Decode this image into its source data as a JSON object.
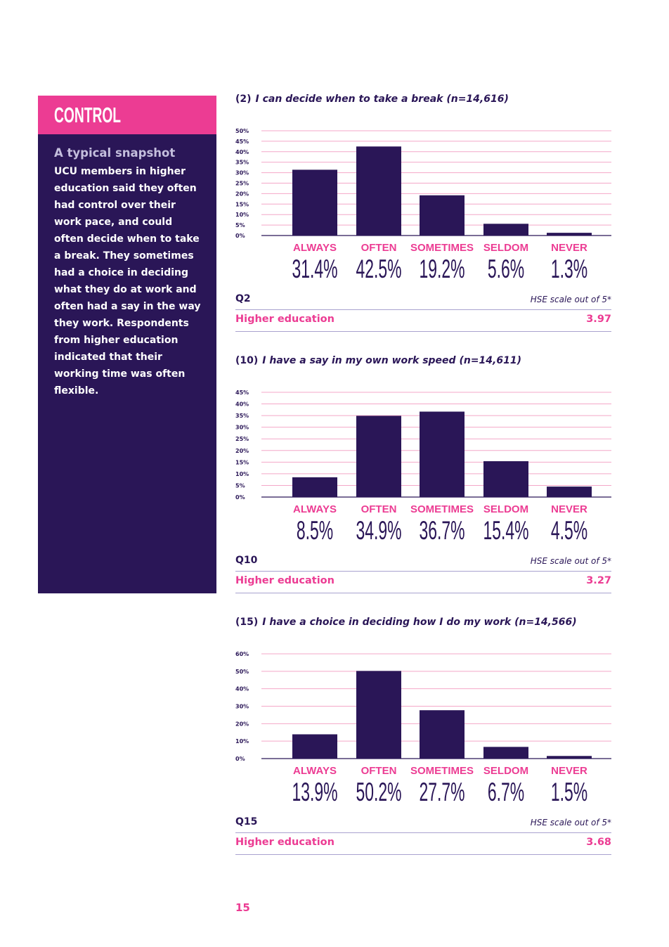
{
  "sidebar": {
    "title": "CONTROL",
    "snapshot_title": "A typical snapshot",
    "snapshot_body": "UCU members in higher education said they often had control over their work pace, and could often decide when to take a break. They sometimes had a choice in deciding what they do at work and often had a say in the way they work. Respondents from higher education indicated that their working time was often flexible."
  },
  "colors": {
    "navy": "#2a1657",
    "pink": "#ec3c93",
    "gridline": "#f4a7c8",
    "rule": "#a9a2cf"
  },
  "charts": [
    {
      "number": "(2)",
      "question": "I can decide when to take a break (n=14,616)",
      "code": "Q2",
      "scale_note": "HSE scale out of 5*",
      "group_label": "Higher education",
      "score": "3.97",
      "percent_labels": [
        "31.4%",
        "42.5%",
        "19.2%",
        "5.6%",
        "1.3%"
      ],
      "tick_labels": [
        "0%",
        "5%",
        "10%",
        "15%",
        "20%",
        "25%",
        "30%",
        "35%",
        "40%",
        "45%",
        "50%"
      ]
    },
    {
      "number": "(10)",
      "question": "I have a say in my own work speed (n=14,611)",
      "code": "Q10",
      "scale_note": "HSE scale out of 5*",
      "group_label": "Higher education",
      "score": "3.27",
      "percent_labels": [
        "8.5%",
        "34.9%",
        "36.7%",
        "15.4%",
        "4.5%"
      ],
      "tick_labels": [
        "0%",
        "5%",
        "10%",
        "15%",
        "20%",
        "25%",
        "30%",
        "35%",
        "40%",
        "45%"
      ]
    },
    {
      "number": "(15)",
      "question": "I have a choice in deciding how I do my work (n=14,566)",
      "code": "Q15",
      "scale_note": "HSE scale out of 5*",
      "group_label": "Higher education",
      "score": "3.68",
      "percent_labels": [
        "13.9%",
        "50.2%",
        "27.7%",
        "6.7%",
        "1.5%"
      ],
      "tick_labels": [
        "0%",
        "10%",
        "20%",
        "30%",
        "40%",
        "50%",
        "60%"
      ]
    }
  ],
  "categories": [
    "ALWAYS",
    "OFTEN",
    "SOMETIMES",
    "SELDOM",
    "NEVER"
  ],
  "page_number": "15",
  "chart_data": [
    {
      "type": "bar",
      "title": "I can decide when to take a break (n=14,616)",
      "categories": [
        "ALWAYS",
        "OFTEN",
        "SOMETIMES",
        "SELDOM",
        "NEVER"
      ],
      "values": [
        31.4,
        42.5,
        19.2,
        5.6,
        1.3
      ],
      "ylim": [
        0,
        50
      ],
      "ytick_step": 5,
      "grid": true
    },
    {
      "type": "bar",
      "title": "I have a say in my own work speed (n=14,611)",
      "categories": [
        "ALWAYS",
        "OFTEN",
        "SOMETIMES",
        "SELDOM",
        "NEVER"
      ],
      "values": [
        8.5,
        34.9,
        36.7,
        15.4,
        4.5
      ],
      "ylim": [
        0,
        45
      ],
      "ytick_step": 5,
      "grid": true
    },
    {
      "type": "bar",
      "title": "I have a choice in deciding how I do my work (n=14,566)",
      "categories": [
        "ALWAYS",
        "OFTEN",
        "SOMETIMES",
        "SELDOM",
        "NEVER"
      ],
      "values": [
        13.9,
        50.2,
        27.7,
        6.7,
        1.5
      ],
      "ylim": [
        0,
        60
      ],
      "ytick_step": 10,
      "grid": true
    }
  ]
}
